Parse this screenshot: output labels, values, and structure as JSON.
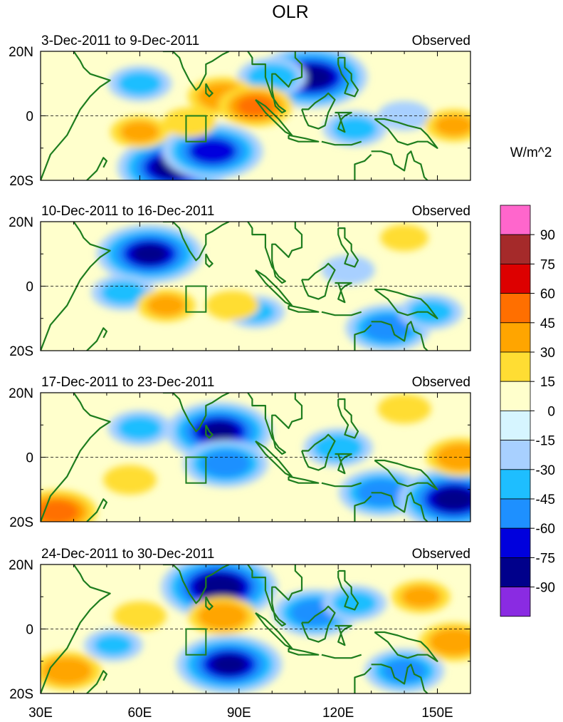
{
  "chart_data": {
    "type": "heatmap",
    "title": "OLR",
    "colorbar": {
      "unit": "W/m^2",
      "levels": [
        "90",
        "75",
        "60",
        "45",
        "30",
        "15",
        "0",
        "-15",
        "-30",
        "-45",
        "-60",
        "-75",
        "-90"
      ],
      "colors": [
        "#ff66cc",
        "#a52a2a",
        "#dd0000",
        "#ff6f00",
        "#ffa500",
        "#ffdd33",
        "#ffffcc",
        "#d6f5ff",
        "#a8d0ff",
        "#1ebeff",
        "#1e90ff",
        "#0000dd",
        "#00008b",
        "#8a2be2"
      ]
    },
    "x_ticks": [
      "30E",
      "60E",
      "90E",
      "120E",
      "150E"
    ],
    "x_range": [
      30,
      160
    ],
    "y_ticks": [
      "20N",
      "0",
      "20S"
    ],
    "y_range": [
      -20,
      20
    ],
    "land_color": "#1e7d1e",
    "box": {
      "lon": [
        74,
        80
      ],
      "lat": [
        -8,
        0
      ]
    },
    "panels": [
      {
        "left_label": "3-Dec-2011 to 9-Dec-2011",
        "right_label": "Observed",
        "features": [
          {
            "lon": 112,
            "lat": 12,
            "value": -80
          },
          {
            "lon": 100,
            "lat": 12,
            "value": -40
          },
          {
            "lon": 70,
            "lat": -16,
            "value": -80
          },
          {
            "lon": 82,
            "lat": -11,
            "value": -70
          },
          {
            "lon": 60,
            "lat": 10,
            "value": -35
          },
          {
            "lon": 125,
            "lat": -4,
            "value": -35
          },
          {
            "lon": 140,
            "lat": 0,
            "value": -25
          },
          {
            "lon": 85,
            "lat": 6,
            "value": 40
          },
          {
            "lon": 95,
            "lat": 3,
            "value": 45
          },
          {
            "lon": 60,
            "lat": -5,
            "value": 30
          },
          {
            "lon": 75,
            "lat": -2,
            "value": 25
          },
          {
            "lon": 155,
            "lat": -3,
            "value": 30
          }
        ]
      },
      {
        "left_label": "10-Dec-2011 to 16-Dec-2011",
        "right_label": "Observed",
        "features": [
          {
            "lon": 63,
            "lat": 10,
            "value": -75
          },
          {
            "lon": 55,
            "lat": -2,
            "value": -35
          },
          {
            "lon": 135,
            "lat": -13,
            "value": -55
          },
          {
            "lon": 148,
            "lat": -8,
            "value": -35
          },
          {
            "lon": 95,
            "lat": -8,
            "value": -30
          },
          {
            "lon": 123,
            "lat": 5,
            "value": -25
          },
          {
            "lon": 68,
            "lat": -6,
            "value": 30
          },
          {
            "lon": 88,
            "lat": -6,
            "value": 25
          },
          {
            "lon": 140,
            "lat": 15,
            "value": 20
          }
        ]
      },
      {
        "left_label": "17-Dec-2011 to 23-Dec-2011",
        "right_label": "Observed",
        "features": [
          {
            "lon": 84,
            "lat": 8,
            "value": -75
          },
          {
            "lon": 86,
            "lat": -2,
            "value": -55
          },
          {
            "lon": 120,
            "lat": 3,
            "value": -40
          },
          {
            "lon": 133,
            "lat": -11,
            "value": -55
          },
          {
            "lon": 155,
            "lat": -13,
            "value": -80
          },
          {
            "lon": 60,
            "lat": 9,
            "value": -35
          },
          {
            "lon": 35,
            "lat": -17,
            "value": 50
          },
          {
            "lon": 57,
            "lat": -7,
            "value": 25
          },
          {
            "lon": 140,
            "lat": 15,
            "value": 25
          },
          {
            "lon": 157,
            "lat": 0,
            "value": 40
          }
        ]
      },
      {
        "left_label": "24-Dec-2011 to 30-Dec-2011",
        "right_label": "Observed",
        "features": [
          {
            "lon": 84,
            "lat": 13,
            "value": -85
          },
          {
            "lon": 87,
            "lat": -11,
            "value": -75
          },
          {
            "lon": 113,
            "lat": 5,
            "value": -55
          },
          {
            "lon": 140,
            "lat": -13,
            "value": -50
          },
          {
            "lon": 52,
            "lat": -5,
            "value": -30
          },
          {
            "lon": 125,
            "lat": 8,
            "value": -35
          },
          {
            "lon": 38,
            "lat": -13,
            "value": 40
          },
          {
            "lon": 155,
            "lat": -4,
            "value": 40
          },
          {
            "lon": 85,
            "lat": 4,
            "value": 40
          },
          {
            "lon": 145,
            "lat": 10,
            "value": 30
          },
          {
            "lon": 60,
            "lat": 4,
            "value": 25
          }
        ]
      }
    ]
  }
}
